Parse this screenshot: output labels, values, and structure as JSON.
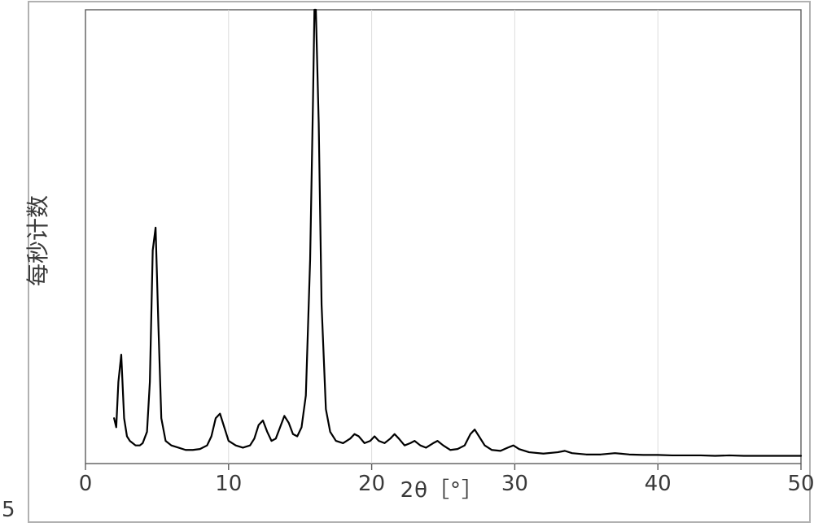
{
  "margin_label": "5",
  "chart": {
    "type": "line",
    "xlabel": "2θ［°］",
    "ylabel": "每秒计数",
    "background_color": "#ffffff",
    "outer_border_color": "#b1b1b1",
    "inner_border_color": "#5c5c5c",
    "grid_color": "#dcdcdc",
    "line_color": "#000000",
    "tick_label_color": "#3a3a3a",
    "axis_label_fontsize": 28,
    "tick_fontsize": 26,
    "line_width": 2.2,
    "xlim": [
      0,
      50
    ],
    "ylim": [
      0,
      100
    ],
    "xticks": [
      0,
      10,
      20,
      30,
      40,
      50
    ],
    "data": [
      [
        2.0,
        10.0
      ],
      [
        2.15,
        8.0
      ],
      [
        2.3,
        18.0
      ],
      [
        2.5,
        24.0
      ],
      [
        2.7,
        10.0
      ],
      [
        2.9,
        6.0
      ],
      [
        3.1,
        5.0
      ],
      [
        3.3,
        4.5
      ],
      [
        3.5,
        4.0
      ],
      [
        3.8,
        4.0
      ],
      [
        4.0,
        4.5
      ],
      [
        4.3,
        7.0
      ],
      [
        4.5,
        18.0
      ],
      [
        4.7,
        47.0
      ],
      [
        4.9,
        52.0
      ],
      [
        5.1,
        30.0
      ],
      [
        5.3,
        10.0
      ],
      [
        5.6,
        5.0
      ],
      [
        6.0,
        4.0
      ],
      [
        6.5,
        3.5
      ],
      [
        7.0,
        3.0
      ],
      [
        7.5,
        3.0
      ],
      [
        8.0,
        3.2
      ],
      [
        8.5,
        4.0
      ],
      [
        8.8,
        6.0
      ],
      [
        9.1,
        10.0
      ],
      [
        9.4,
        11.0
      ],
      [
        9.7,
        8.0
      ],
      [
        10.0,
        5.0
      ],
      [
        10.5,
        4.0
      ],
      [
        11.0,
        3.5
      ],
      [
        11.5,
        4.0
      ],
      [
        11.8,
        5.5
      ],
      [
        12.1,
        8.5
      ],
      [
        12.4,
        9.5
      ],
      [
        12.7,
        7.0
      ],
      [
        13.0,
        5.0
      ],
      [
        13.3,
        5.5
      ],
      [
        13.6,
        8.0
      ],
      [
        13.9,
        10.5
      ],
      [
        14.2,
        9.0
      ],
      [
        14.5,
        6.5
      ],
      [
        14.8,
        6.0
      ],
      [
        15.1,
        8.0
      ],
      [
        15.4,
        15.0
      ],
      [
        15.7,
        45.0
      ],
      [
        15.9,
        80.0
      ],
      [
        16.0,
        100.0
      ],
      [
        16.1,
        100.0
      ],
      [
        16.3,
        75.0
      ],
      [
        16.5,
        35.0
      ],
      [
        16.8,
        12.0
      ],
      [
        17.1,
        7.0
      ],
      [
        17.5,
        5.0
      ],
      [
        18.0,
        4.5
      ],
      [
        18.5,
        5.5
      ],
      [
        18.8,
        6.5
      ],
      [
        19.1,
        6.0
      ],
      [
        19.5,
        4.5
      ],
      [
        19.9,
        5.0
      ],
      [
        20.2,
        6.0
      ],
      [
        20.5,
        5.0
      ],
      [
        20.9,
        4.5
      ],
      [
        21.3,
        5.5
      ],
      [
        21.6,
        6.5
      ],
      [
        21.9,
        5.5
      ],
      [
        22.3,
        4.0
      ],
      [
        22.7,
        4.5
      ],
      [
        23.0,
        5.0
      ],
      [
        23.4,
        4.0
      ],
      [
        23.8,
        3.5
      ],
      [
        24.3,
        4.5
      ],
      [
        24.6,
        5.0
      ],
      [
        25.0,
        4.0
      ],
      [
        25.5,
        3.0
      ],
      [
        26.0,
        3.2
      ],
      [
        26.5,
        4.0
      ],
      [
        26.9,
        6.5
      ],
      [
        27.2,
        7.5
      ],
      [
        27.5,
        6.0
      ],
      [
        27.9,
        4.0
      ],
      [
        28.4,
        3.0
      ],
      [
        29.0,
        2.8
      ],
      [
        29.5,
        3.5
      ],
      [
        29.9,
        4.0
      ],
      [
        30.3,
        3.2
      ],
      [
        31.0,
        2.5
      ],
      [
        32.0,
        2.2
      ],
      [
        33.0,
        2.5
      ],
      [
        33.5,
        2.8
      ],
      [
        34.0,
        2.3
      ],
      [
        35.0,
        2.0
      ],
      [
        36.0,
        2.0
      ],
      [
        37.0,
        2.3
      ],
      [
        38.0,
        2.0
      ],
      [
        39.0,
        1.9
      ],
      [
        40.0,
        1.9
      ],
      [
        41.0,
        1.8
      ],
      [
        42.0,
        1.8
      ],
      [
        43.0,
        1.8
      ],
      [
        44.0,
        1.7
      ],
      [
        45.0,
        1.8
      ],
      [
        46.0,
        1.7
      ],
      [
        47.0,
        1.7
      ],
      [
        48.0,
        1.7
      ],
      [
        49.0,
        1.7
      ],
      [
        50.0,
        1.7
      ]
    ]
  }
}
